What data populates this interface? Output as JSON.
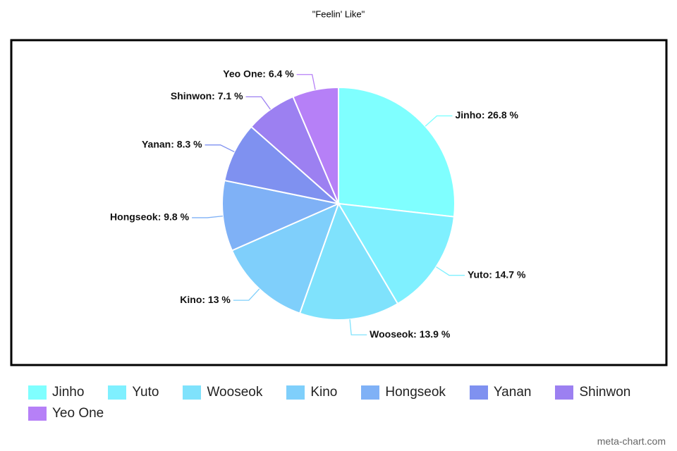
{
  "chart_data": {
    "type": "pie",
    "title": "\"Feelin' Like\"",
    "categories": [
      "Jinho",
      "Yuto",
      "Wooseok",
      "Kino",
      "Hongseok",
      "Yanan",
      "Shinwon",
      "Yeo One"
    ],
    "values": [
      26.8,
      14.7,
      13.9,
      13,
      9.8,
      8.3,
      7.1,
      6.4
    ],
    "value_labels": [
      "Jinho: 26.8 %",
      "Yuto: 14.7 %",
      "Wooseok: 13.9 %",
      "Kino: 13 %",
      "Hongseok: 9.8 %",
      "Yanan: 8.3 %",
      "Shinwon: 7.1 %",
      "Yeo One: 6.4 %"
    ],
    "colors": [
      "#7fffff",
      "#7ff0ff",
      "#7fe2fc",
      "#7fcffb",
      "#7fb1f6",
      "#7f91f0",
      "#9c80f1",
      "#b680f7"
    ],
    "legend": "bottom",
    "watermark": "meta-chart.com"
  }
}
